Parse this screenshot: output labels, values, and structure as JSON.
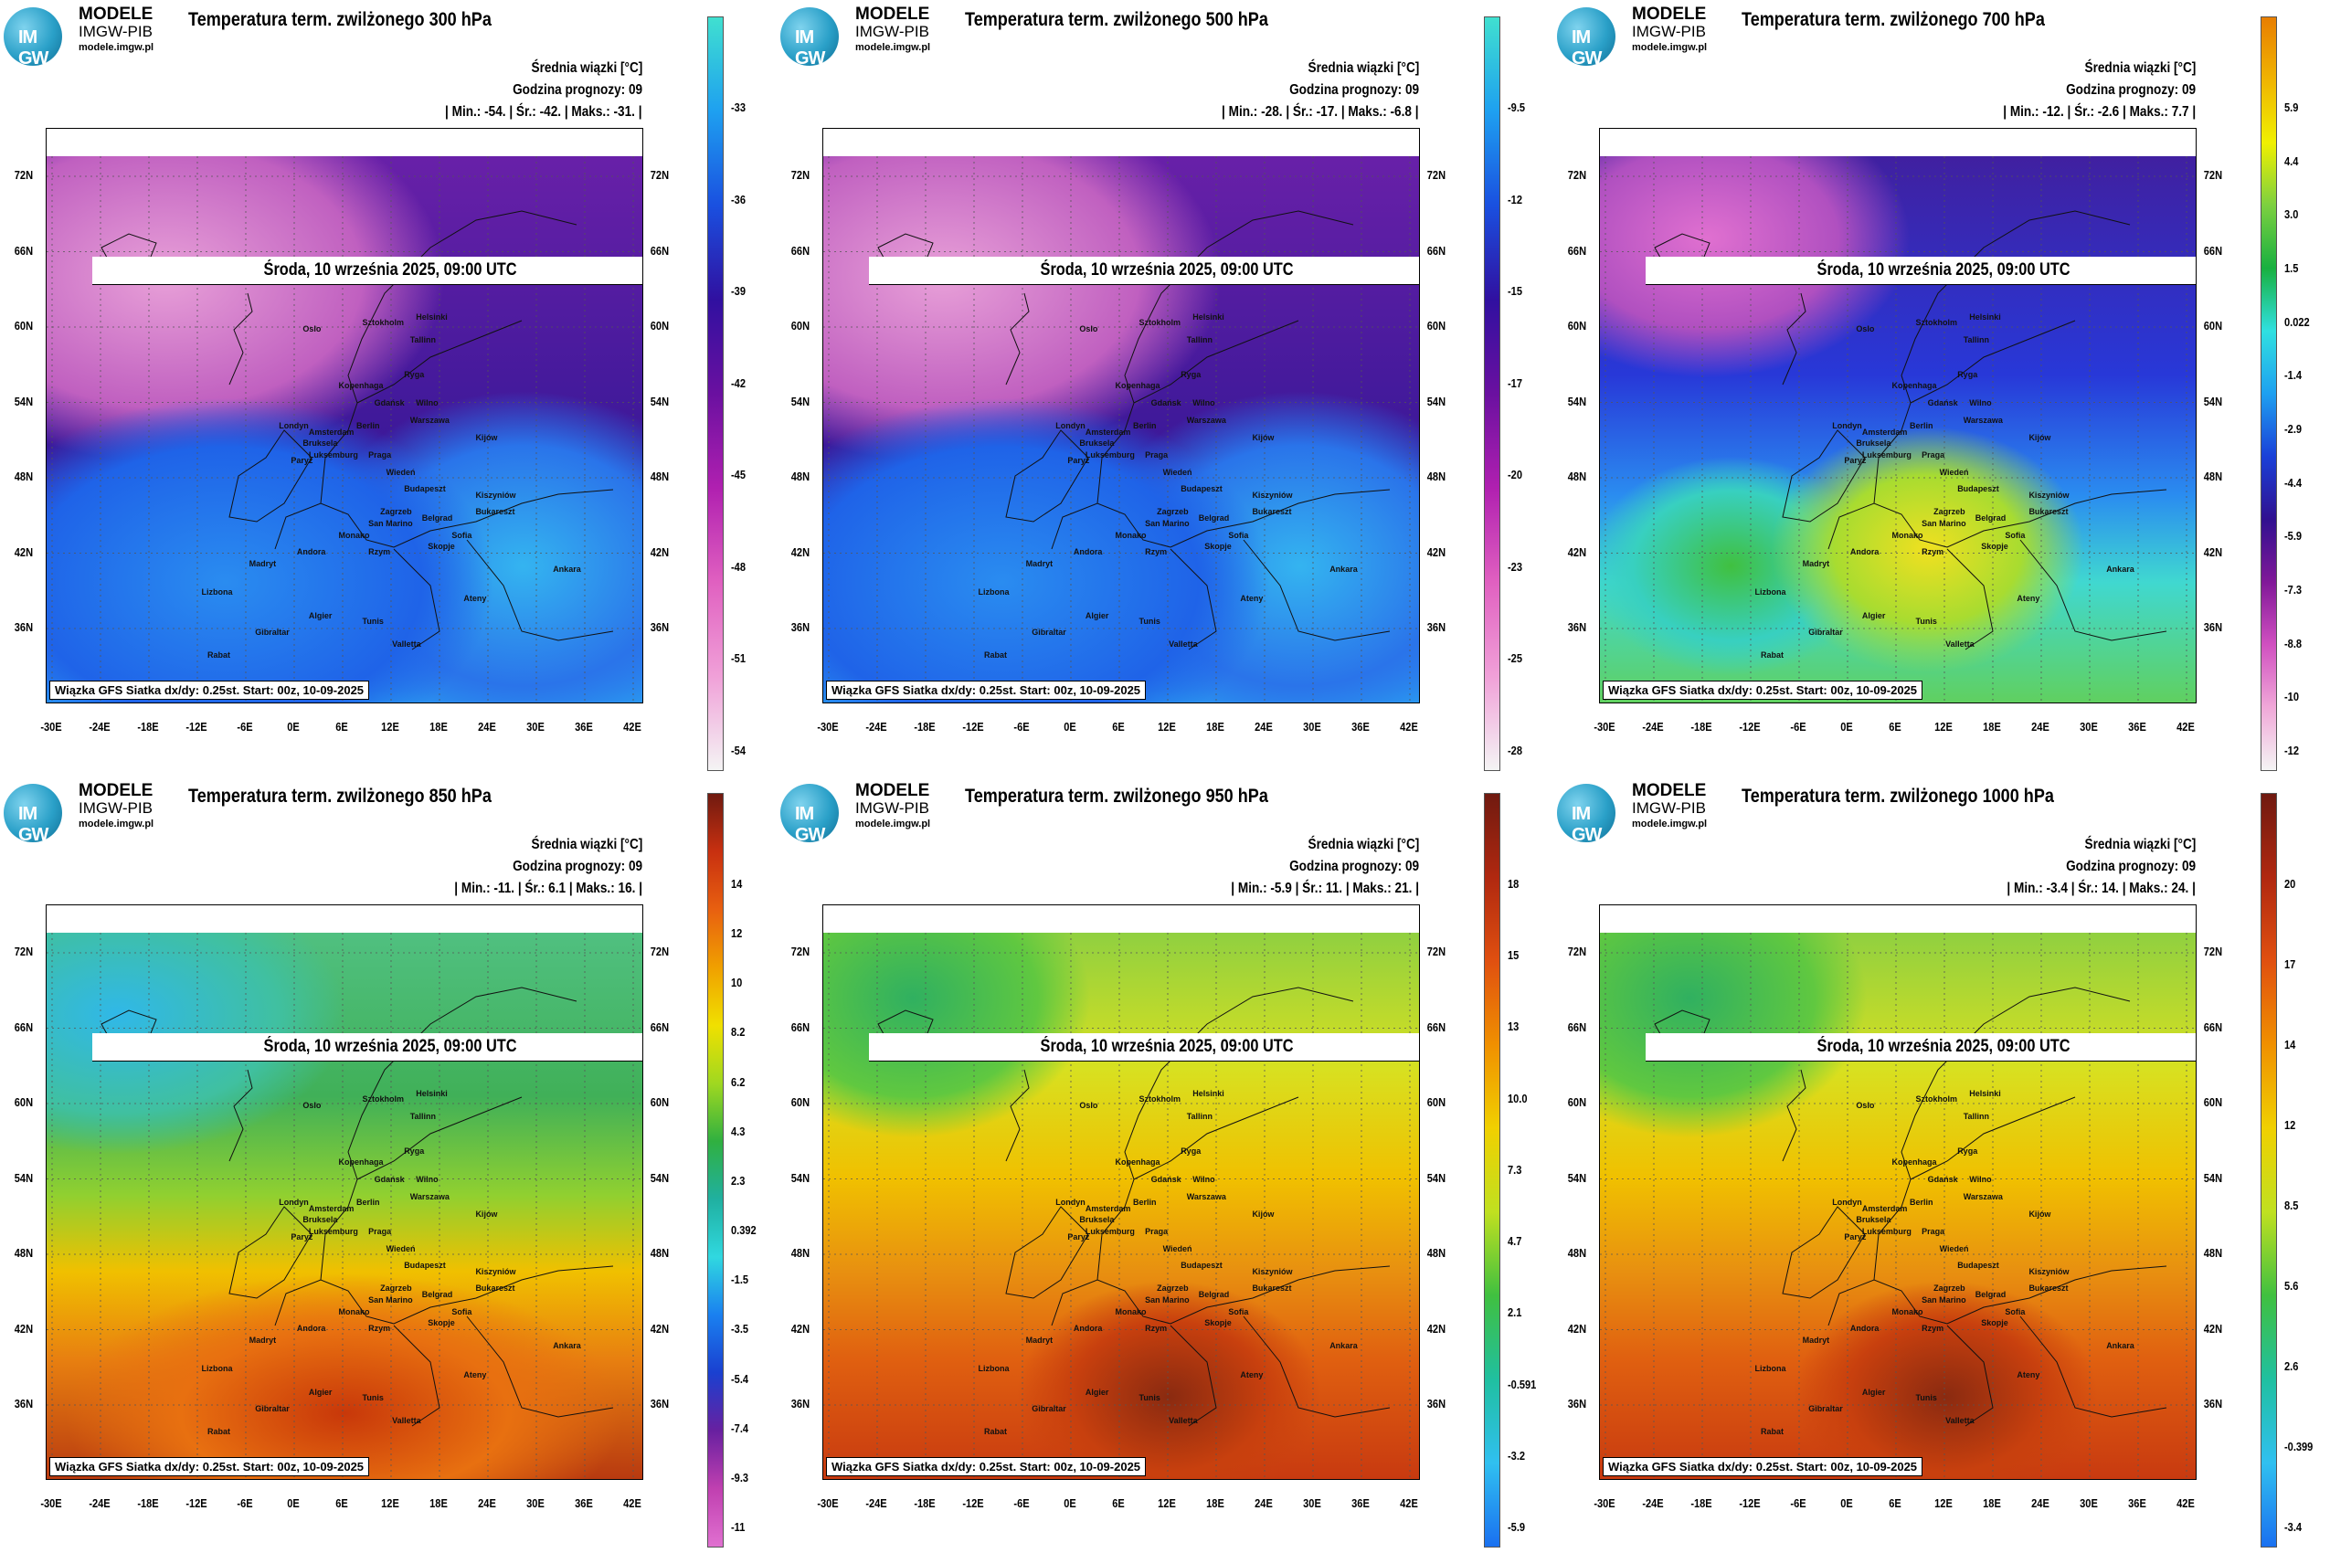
{
  "brand": {
    "name": "MODELE",
    "org": "IMGW-PIB",
    "site": "modele.imgw.pl",
    "logo_text": "IM GW"
  },
  "common": {
    "date": "Środa, 10 września 2025, 09:00 UTC",
    "unit_label": "Średnia wiązki [°C]",
    "forecast_hour": "Godzina prognozy: 09",
    "footer": "Wiązka GFS Siatka dx/dy: 0.25st. Start: 00z, 10-09-2025",
    "lat_labels": [
      "72N",
      "66N",
      "60N",
      "54N",
      "48N",
      "42N",
      "36N"
    ],
    "lon_labels": [
      "-30E",
      "-24E",
      "-18E",
      "-12E",
      "-6E",
      "0E",
      "6E",
      "12E",
      "18E",
      "24E",
      "30E",
      "36E",
      "42E"
    ],
    "cities": [
      "Oslo",
      "Sztokholm",
      "Helsinki",
      "Tallinn",
      "Ryga",
      "Wilno",
      "Kopenhaga",
      "Gdańsk",
      "Berlin",
      "Warszawa",
      "Kijów",
      "Amsterdam",
      "Bruksela",
      "Londyn",
      "Paryż",
      "Luksemburg",
      "Praga",
      "Wiedeń",
      "Budapeszt",
      "Kiszyniów",
      "Zagrzeb",
      "Belgrad",
      "Bukareszt",
      "Sofia",
      "Skopje",
      "Rzym",
      "San Marino",
      "Andora",
      "Madryt",
      "Lizbona",
      "Gibraltar",
      "Algier",
      "Tunis",
      "Valletta",
      "Ateny",
      "Ankara",
      "Rabat",
      "Monako"
    ]
  },
  "panels": [
    {
      "title": "Temperatura term. zwilżonego 300 hPa",
      "stats": "| Min.:   -54. | Śr.:   -42. | Maks.:   -31. |",
      "ticks": [
        "-33",
        "-36",
        "-39",
        "-42",
        "-45",
        "-48",
        "-51",
        "-54"
      ],
      "palette": "cold"
    },
    {
      "title": "Temperatura term. zwilżonego 500 hPa",
      "stats": "| Min.:   -28. | Śr.:   -17. | Maks.:   -6.8 |",
      "ticks": [
        "-9.5",
        "-12",
        "-15",
        "-17",
        "-20",
        "-23",
        "-25",
        "-28"
      ],
      "palette": "cold"
    },
    {
      "title": "Temperatura term. zwilżonego 700 hPa",
      "stats": "| Min.:   -12. | Śr.:   -2.6 | Maks.:   7.7 |",
      "ticks": [
        "5.9",
        "4.4",
        "3.0",
        "1.5",
        "0.022",
        "-1.4",
        "-2.9",
        "-4.4",
        "-5.9",
        "-7.3",
        "-8.8",
        "-10",
        "-12"
      ],
      "palette": "mid"
    },
    {
      "title": "Temperatura term. zwilżonego 850 hPa",
      "stats": "| Min.:   -11. | Śr.:   6.1 | Maks.:   16. |",
      "ticks": [
        "14",
        "12",
        "10",
        "8.2",
        "6.2",
        "4.3",
        "2.3",
        "0.392",
        "-1.5",
        "-3.5",
        "-5.4",
        "-7.4",
        "-9.3",
        "-11"
      ],
      "palette": "warm850"
    },
    {
      "title": "Temperatura term. zwilżonego 950 hPa",
      "stats": "| Min.:   -5.9 | Śr.:   11. | Maks.:   21. |",
      "ticks": [
        "18",
        "15",
        "13",
        "10.0",
        "7.3",
        "4.7",
        "2.1",
        "-0.591",
        "-3.2",
        "-5.9"
      ],
      "palette": "warm"
    },
    {
      "title": "Temperatura term. zwilżonego 1000 hPa",
      "stats": "| Min.:   -3.4 | Śr.:   14. | Maks.:   24. |",
      "ticks": [
        "20",
        "17",
        "14",
        "12",
        "8.5",
        "5.6",
        "2.6",
        "-0.399",
        "-3.4"
      ],
      "palette": "warm"
    }
  ]
}
